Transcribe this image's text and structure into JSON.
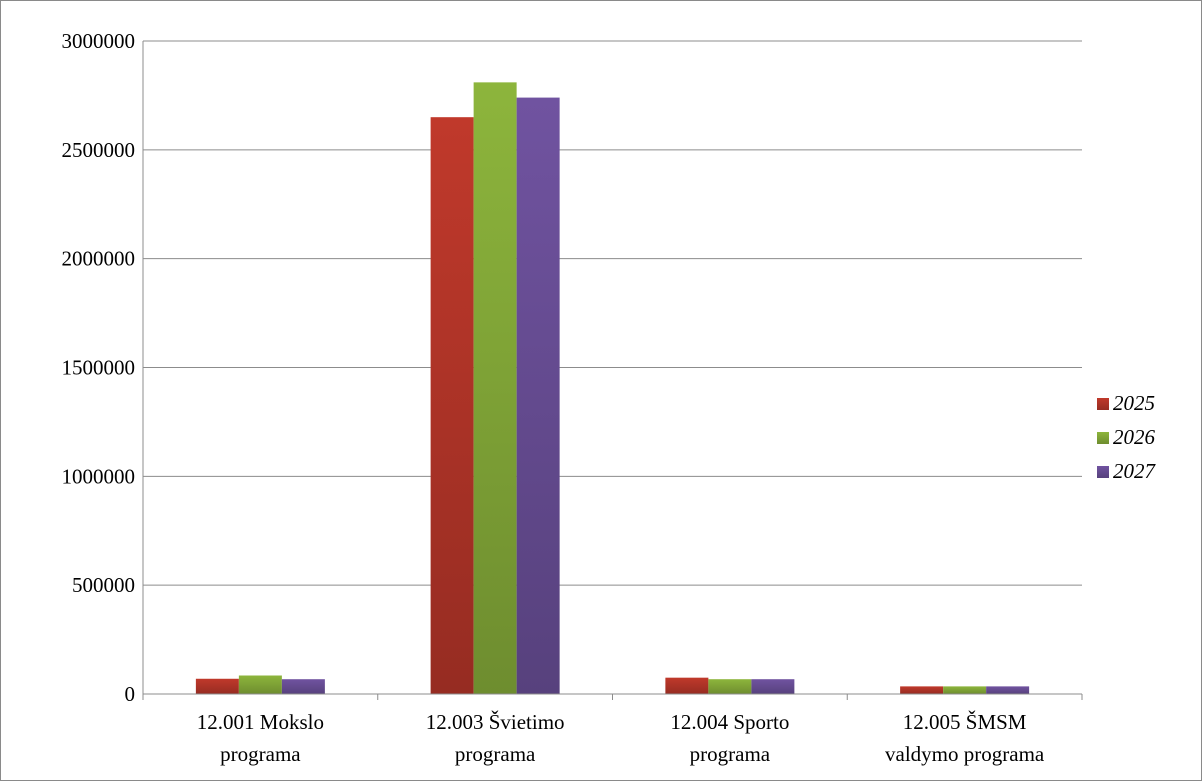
{
  "chart_data": {
    "type": "bar",
    "categories": [
      [
        "12.001 Mokslo",
        "programa"
      ],
      [
        "12.003 Švietimo",
        "programa"
      ],
      [
        "12.004 Sporto",
        "programa"
      ],
      [
        "12.005 ŠMSM",
        "valdymo programa"
      ]
    ],
    "series": [
      {
        "name": "2025",
        "color": "#c0392b",
        "values": [
          70000,
          2650000,
          75000,
          35000
        ]
      },
      {
        "name": "2026",
        "color": "#8db53c",
        "values": [
          85000,
          2810000,
          68000,
          35000
        ]
      },
      {
        "name": "2027",
        "color": "#7053a0",
        "values": [
          68000,
          2740000,
          68000,
          35000
        ]
      }
    ],
    "yticks": [
      "0",
      "500000",
      "1000000",
      "1500000",
      "2000000",
      "2500000",
      "3000000"
    ],
    "ylim": [
      0,
      3000000
    ],
    "grid": true,
    "legend": "right"
  }
}
